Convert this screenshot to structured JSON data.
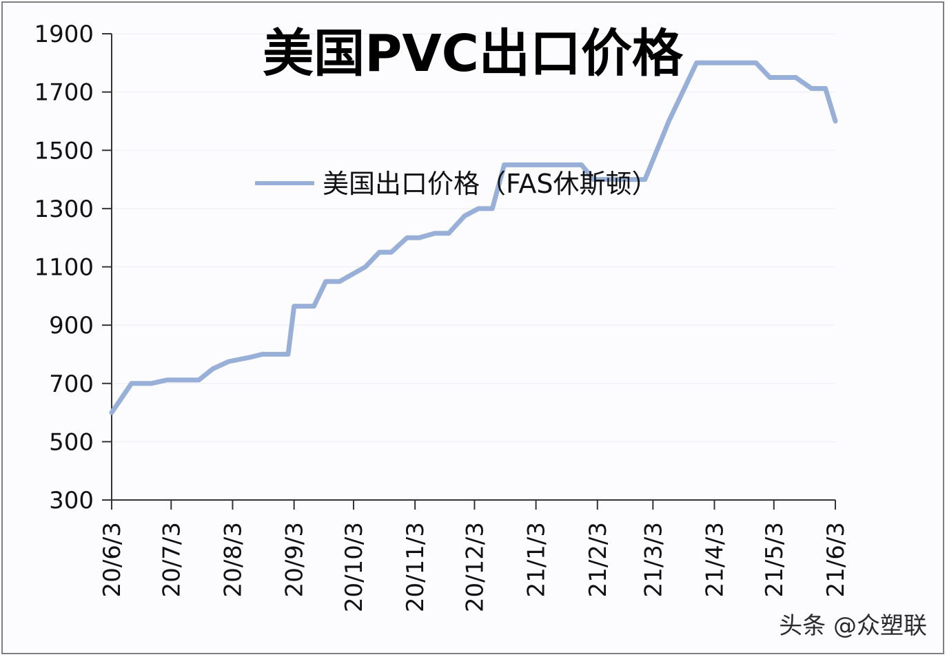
{
  "chart_data": {
    "type": "line",
    "title": "美国PVC出口价格",
    "xlabel": "",
    "ylabel": "",
    "ylim": [
      300,
      1900
    ],
    "y_ticks": [
      "300",
      "500",
      "700",
      "900",
      "1100",
      "1300",
      "1500",
      "1700",
      "1900"
    ],
    "x_ticks": [
      "20/6/3",
      "20/7/3",
      "20/8/3",
      "20/9/3",
      "20/10/3",
      "20/11/3",
      "20/12/3",
      "21/1/3",
      "21/2/3",
      "21/3/3",
      "21/4/3",
      "21/5/3",
      "21/6/3"
    ],
    "xlim": [
      "2020-06-03",
      "2021-06-03"
    ],
    "grid": true,
    "legend_position": "top-center",
    "series": [
      {
        "name": "美国出口价格（FAS休斯顿）",
        "color": "#98b0d8",
        "points": [
          [
            "2020-06-03",
            600
          ],
          [
            "2020-06-13",
            700
          ],
          [
            "2020-06-23",
            700
          ],
          [
            "2020-07-01",
            712
          ],
          [
            "2020-07-17",
            712
          ],
          [
            "2020-07-24",
            750
          ],
          [
            "2020-08-01",
            775
          ],
          [
            "2020-08-12",
            790
          ],
          [
            "2020-08-18",
            800
          ],
          [
            "2020-08-31",
            800
          ],
          [
            "2020-09-03",
            965
          ],
          [
            "2020-09-13",
            965
          ],
          [
            "2020-09-19",
            1050
          ],
          [
            "2020-09-26",
            1050
          ],
          [
            "2020-10-09",
            1100
          ],
          [
            "2020-10-16",
            1150
          ],
          [
            "2020-10-22",
            1150
          ],
          [
            "2020-10-30",
            1200
          ],
          [
            "2020-11-05",
            1200
          ],
          [
            "2020-11-13",
            1215
          ],
          [
            "2020-11-20",
            1215
          ],
          [
            "2020-11-28",
            1275
          ],
          [
            "2020-12-05",
            1300
          ],
          [
            "2020-12-12",
            1300
          ],
          [
            "2020-12-18",
            1450
          ],
          [
            "2021-01-26",
            1450
          ],
          [
            "2021-02-01",
            1400
          ],
          [
            "2021-02-27",
            1400
          ],
          [
            "2021-03-11",
            1600
          ],
          [
            "2021-03-18",
            1700
          ],
          [
            "2021-03-25",
            1800
          ],
          [
            "2021-04-24",
            1800
          ],
          [
            "2021-05-01",
            1750
          ],
          [
            "2021-05-14",
            1750
          ],
          [
            "2021-05-22",
            1712
          ],
          [
            "2021-05-29",
            1712
          ],
          [
            "2021-06-03",
            1600
          ]
        ]
      }
    ]
  },
  "watermark": "头条 @众塑联"
}
